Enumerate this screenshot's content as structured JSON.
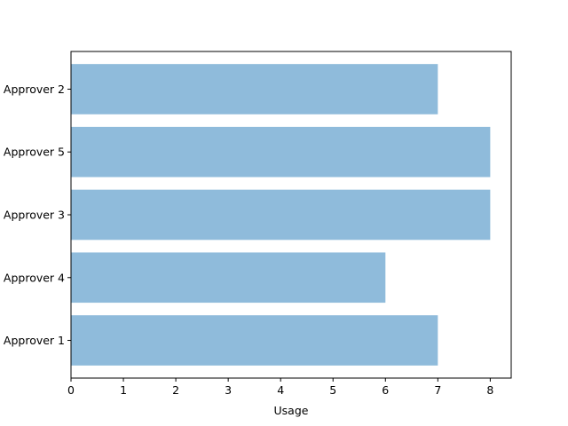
{
  "chart_data": {
    "type": "bar",
    "orientation": "horizontal",
    "title": "",
    "xlabel": "Usage",
    "ylabel": "",
    "categories": [
      "Approver 1",
      "Approver 4",
      "Approver 3",
      "Approver 5",
      "Approver 2"
    ],
    "values": [
      7,
      6,
      8,
      8,
      7
    ],
    "xlim": [
      0,
      8.4
    ],
    "xticks": [
      0,
      1,
      2,
      3,
      4,
      5,
      6,
      7,
      8
    ],
    "grid": false,
    "legend": "none",
    "colors": {
      "bar": "#8fbbdb",
      "axis": "#000000",
      "background": "#ffffff"
    }
  }
}
